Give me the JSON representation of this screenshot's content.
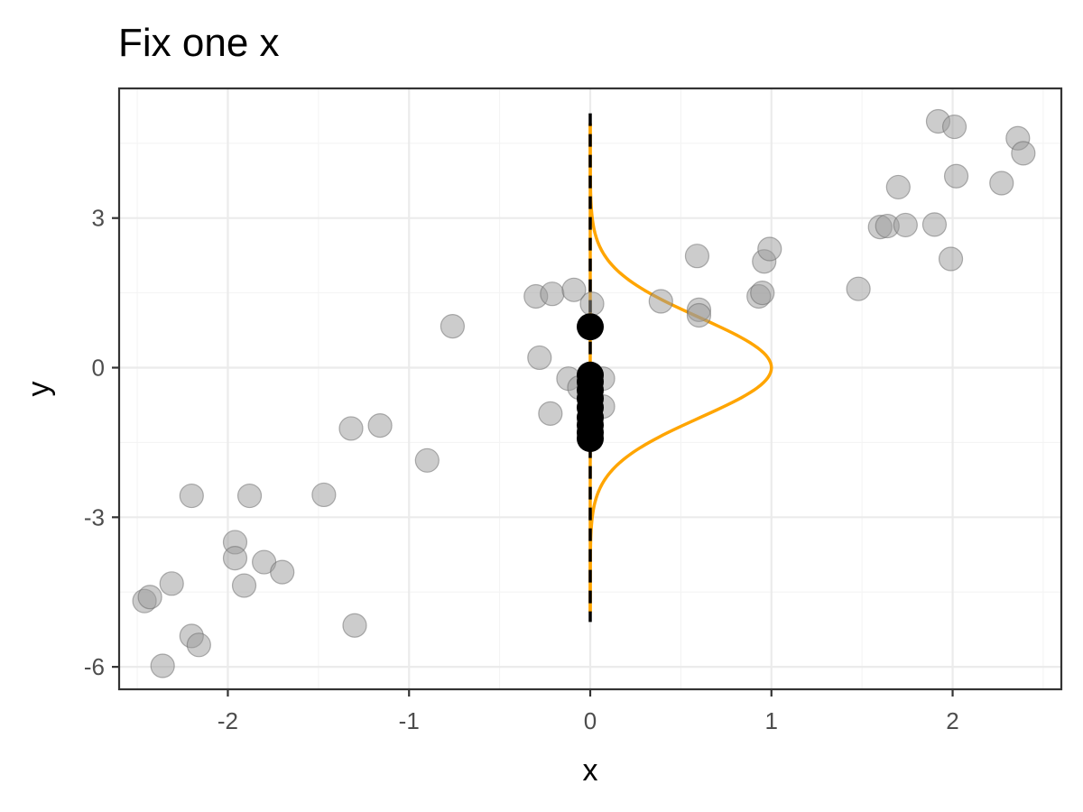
{
  "chart_data": {
    "type": "scatter",
    "title": "Fix one x",
    "xlabel": "x",
    "ylabel": "y",
    "xlim": [
      -2.6,
      2.6
    ],
    "ylim": [
      -6.45,
      5.6
    ],
    "x_ticks": [
      -2,
      -1,
      0,
      1,
      2
    ],
    "y_ticks": [
      -6,
      -3,
      0,
      3
    ],
    "grid": true,
    "legend": "none",
    "colors": {
      "points": "#999999",
      "highlight": "#000000",
      "density": "#ffa500",
      "dashed_line": "#000000"
    },
    "series": [
      {
        "points": [
          [
            -2.46,
            -4.68
          ],
          [
            -2.43,
            -4.6
          ],
          [
            -2.36,
            -5.98
          ],
          [
            -2.31,
            -4.33
          ],
          [
            -2.2,
            -5.38
          ],
          [
            -2.2,
            -2.57
          ],
          [
            -2.16,
            -5.56
          ],
          [
            -1.96,
            -3.5
          ],
          [
            -1.96,
            -3.82
          ],
          [
            -1.91,
            -4.37
          ],
          [
            -1.88,
            -2.57
          ],
          [
            -1.8,
            -3.9
          ],
          [
            -1.7,
            -4.1
          ],
          [
            -1.47,
            -2.55
          ],
          [
            -1.32,
            -1.22
          ],
          [
            -1.3,
            -5.17
          ],
          [
            -1.16,
            -1.16
          ],
          [
            -0.9,
            -1.86
          ],
          [
            -0.76,
            0.83
          ],
          [
            -0.3,
            1.43
          ],
          [
            -0.28,
            0.2
          ],
          [
            -0.21,
            1.48
          ],
          [
            -0.22,
            -0.92
          ],
          [
            -0.09,
            1.56
          ],
          [
            -0.12,
            -0.22
          ],
          [
            -0.06,
            -0.4
          ],
          [
            0.01,
            1.28
          ],
          [
            0.07,
            -0.22
          ],
          [
            0.07,
            -0.78
          ],
          [
            0.39,
            1.33
          ],
          [
            0.59,
            2.24
          ],
          [
            0.6,
            1.16
          ],
          [
            0.6,
            1.05
          ],
          [
            0.93,
            1.43
          ],
          [
            0.95,
            1.5
          ],
          [
            0.96,
            2.13
          ],
          [
            0.99,
            2.38
          ],
          [
            1.48,
            1.58
          ],
          [
            1.6,
            2.82
          ],
          [
            1.64,
            2.84
          ],
          [
            1.7,
            3.62
          ],
          [
            1.74,
            2.86
          ],
          [
            1.9,
            2.87
          ],
          [
            1.92,
            4.94
          ],
          [
            1.99,
            2.18
          ],
          [
            2.01,
            4.83
          ],
          [
            2.02,
            3.84
          ],
          [
            2.27,
            3.7
          ],
          [
            2.36,
            4.6
          ],
          [
            2.39,
            4.3
          ]
        ]
      },
      {
        "x": 0,
        "y": [
          0.82,
          -0.15,
          -0.28,
          -0.45,
          -0.62,
          -0.8,
          -1.0,
          -1.15,
          -1.3,
          -1.42
        ]
      }
    ]
  }
}
